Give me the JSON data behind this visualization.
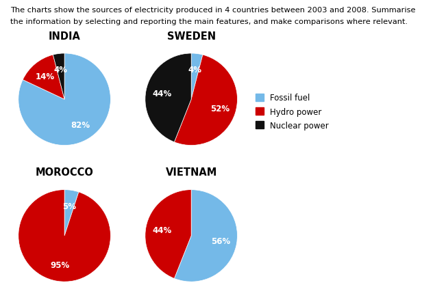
{
  "title_line1": "The charts show the sources of electricity produced in 4 countries between 2003 and 2008. Summarise",
  "title_line2": "the information by selecting and reporting the main features, and make comparisons where relevant.",
  "countries": [
    "INDIA",
    "SWEDEN",
    "MOROCCO",
    "VIETNAM"
  ],
  "colors": {
    "fossil": "#74b9e8",
    "hydro": "#cc0000",
    "nuclear": "#111111"
  },
  "legend_labels": [
    "Fossil fuel",
    "Hydro power",
    "Nuclear power"
  ],
  "charts": {
    "INDIA": [
      82,
      14,
      4
    ],
    "SWEDEN": [
      4,
      52,
      44
    ],
    "MOROCCO": [
      5,
      95,
      0
    ],
    "VIETNAM": [
      56,
      44,
      0
    ]
  },
  "background_color": "#ffffff",
  "text_color": "#000000",
  "title_fontsize": 8.2,
  "country_fontsize": 10.5,
  "pct_fontsize": 8.5,
  "legend_fontsize": 8.5
}
